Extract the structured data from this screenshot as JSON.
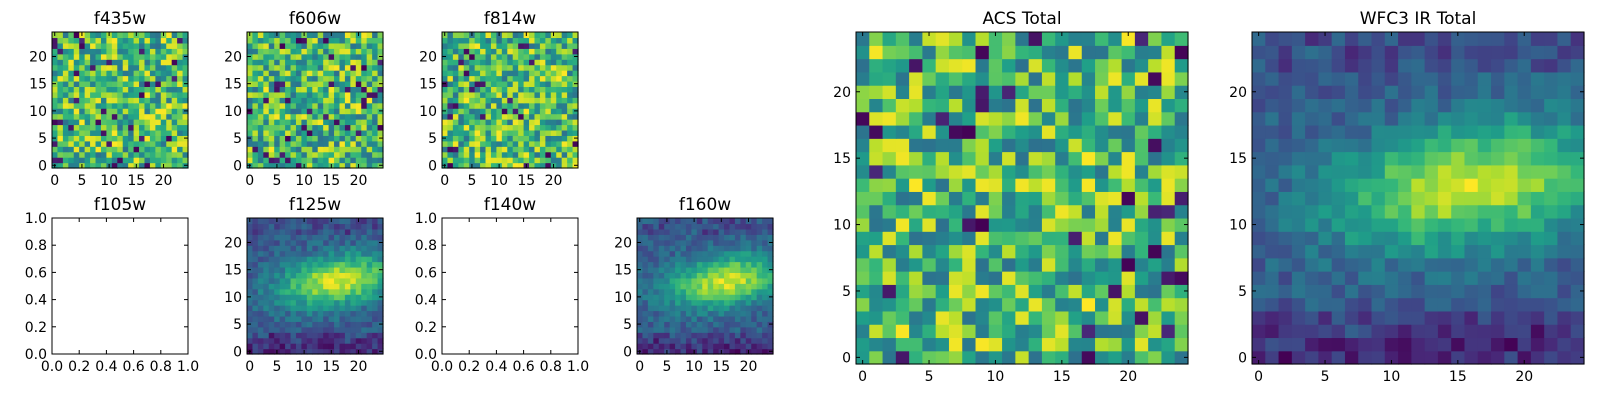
{
  "figure": {
    "background": "#ffffff",
    "axis_color": "#000000"
  },
  "chart_data": [
    {
      "id": "f435w",
      "type": "heatmap",
      "title": "f435w",
      "grid_size": 25,
      "seed": 11,
      "texture": "noise",
      "xticks": [
        0,
        5,
        10,
        15,
        20
      ],
      "yticks": [
        0,
        5,
        10,
        15,
        20
      ],
      "xlim": [
        0,
        24
      ],
      "ylim": [
        0,
        24
      ],
      "colormap": "viridis"
    },
    {
      "id": "f606w",
      "type": "heatmap",
      "title": "f606w",
      "grid_size": 25,
      "seed": 23,
      "texture": "noise",
      "xticks": [
        0,
        5,
        10,
        15,
        20
      ],
      "yticks": [
        0,
        5,
        10,
        15,
        20
      ],
      "xlim": [
        0,
        24
      ],
      "ylim": [
        0,
        24
      ],
      "colormap": "viridis"
    },
    {
      "id": "f814w",
      "type": "heatmap",
      "title": "f814w",
      "grid_size": 25,
      "seed": 37,
      "texture": "noise",
      "xticks": [
        0,
        5,
        10,
        15,
        20
      ],
      "yticks": [
        0,
        5,
        10,
        15,
        20
      ],
      "xlim": [
        0,
        24
      ],
      "ylim": [
        0,
        24
      ],
      "colormap": "viridis"
    },
    {
      "id": "f105w",
      "type": "empty",
      "title": "f105w",
      "xticks": [
        "0.0",
        "0.2",
        "0.4",
        "0.6",
        "0.8",
        "1.0"
      ],
      "yticks": [
        "0.0",
        "0.2",
        "0.4",
        "0.6",
        "0.8",
        "1.0"
      ],
      "xlim": [
        0,
        1
      ],
      "ylim": [
        0,
        1
      ]
    },
    {
      "id": "f125w",
      "type": "heatmap",
      "title": "f125w",
      "grid_size": 25,
      "seed": 41,
      "texture": "galaxy",
      "xticks": [
        0,
        5,
        10,
        15,
        20
      ],
      "yticks": [
        0,
        5,
        10,
        15,
        20
      ],
      "xlim": [
        0,
        24
      ],
      "ylim": [
        0,
        24
      ],
      "colormap": "viridis"
    },
    {
      "id": "f140w",
      "type": "empty",
      "title": "f140w",
      "xticks": [
        "0.0",
        "0.2",
        "0.4",
        "0.6",
        "0.8",
        "1.0"
      ],
      "yticks": [
        "0.0",
        "0.2",
        "0.4",
        "0.6",
        "0.8",
        "1.0"
      ],
      "xlim": [
        0,
        1
      ],
      "ylim": [
        0,
        1
      ]
    },
    {
      "id": "f160w",
      "type": "heatmap",
      "title": "f160w",
      "grid_size": 25,
      "seed": 53,
      "texture": "galaxy",
      "xticks": [
        0,
        5,
        10,
        15,
        20
      ],
      "yticks": [
        0,
        5,
        10,
        15,
        20
      ],
      "xlim": [
        0,
        24
      ],
      "ylim": [
        0,
        24
      ],
      "colormap": "viridis"
    },
    {
      "id": "acs-total",
      "type": "heatmap",
      "title": "ACS Total",
      "grid_size": 25,
      "seed": 67,
      "texture": "noise",
      "xticks": [
        0,
        5,
        10,
        15,
        20
      ],
      "yticks": [
        0,
        5,
        10,
        15,
        20
      ],
      "xlim": [
        0,
        24
      ],
      "ylim": [
        0,
        24
      ],
      "colormap": "viridis"
    },
    {
      "id": "wfc3-ir-total",
      "type": "heatmap",
      "title": "WFC3 IR Total",
      "grid_size": 25,
      "seed": 79,
      "texture": "galaxy",
      "xticks": [
        0,
        5,
        10,
        15,
        20
      ],
      "yticks": [
        0,
        5,
        10,
        15,
        20
      ],
      "xlim": [
        0,
        24
      ],
      "ylim": [
        0,
        24
      ],
      "colormap": "viridis"
    }
  ]
}
